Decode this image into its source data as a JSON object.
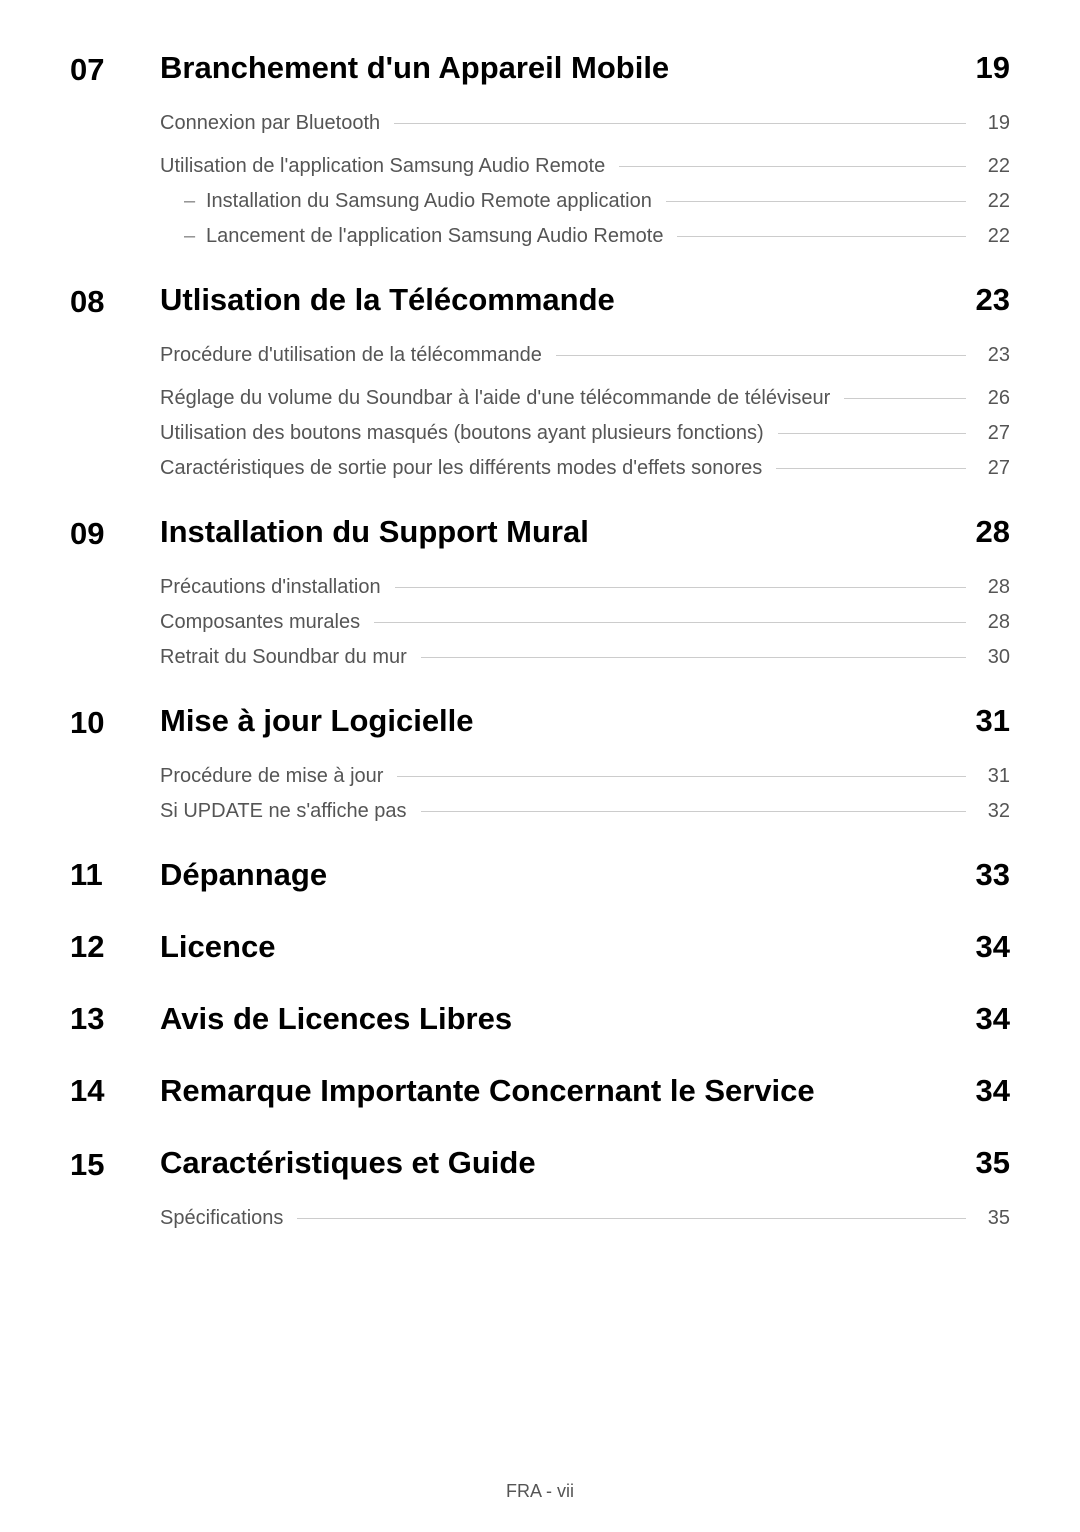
{
  "colors": {
    "text_primary": "#000000",
    "text_secondary": "#555555",
    "leader_line": "#cccccc",
    "background": "#ffffff"
  },
  "typography": {
    "section_num_size": 31,
    "section_title_size": 31,
    "toc_item_size": 20,
    "footer_size": 18
  },
  "sections": {
    "s07": {
      "num": "07",
      "title": "Branchement d'un Appareil Mobile",
      "page": "19",
      "items": [
        {
          "label": "Connexion par Bluetooth",
          "page": "19"
        },
        {
          "label": "Utilisation de l'application Samsung Audio Remote",
          "page": "22"
        },
        {
          "label": "Installation du Samsung Audio Remote application",
          "page": "22",
          "sub": true
        },
        {
          "label": "Lancement de l'application Samsung Audio Remote",
          "page": "22",
          "sub": true
        }
      ]
    },
    "s08": {
      "num": "08",
      "title": "Utlisation de la Télécommande",
      "page": "23",
      "items": [
        {
          "label": "Procédure d'utilisation de la télécommande",
          "page": "23"
        },
        {
          "label": "Réglage du volume du Soundbar à l'aide d'une télécommande de téléviseur",
          "page": "26"
        },
        {
          "label": "Utilisation des boutons masqués (boutons ayant plusieurs fonctions)",
          "page": "27"
        },
        {
          "label": "Caractéristiques de sortie pour les différents modes d'effets sonores",
          "page": "27"
        }
      ]
    },
    "s09": {
      "num": "09",
      "title": "Installation du Support Mural",
      "page": "28",
      "items": [
        {
          "label": "Précautions d'installation",
          "page": "28"
        },
        {
          "label": "Composantes murales",
          "page": "28"
        },
        {
          "label": "Retrait du Soundbar du mur",
          "page": "30"
        }
      ]
    },
    "s10": {
      "num": "10",
      "title": "Mise à jour Logicielle",
      "page": "31",
      "items": [
        {
          "label": "Procédure de mise à jour",
          "page": "31"
        },
        {
          "label": "Si UPDATE ne s'affiche pas",
          "page": "32"
        }
      ]
    },
    "s11": {
      "num": "11",
      "title": "Dépannage",
      "page": "33"
    },
    "s12": {
      "num": "12",
      "title": "Licence",
      "page": "34"
    },
    "s13": {
      "num": "13",
      "title": "Avis de Licences Libres",
      "page": "34"
    },
    "s14": {
      "num": "14",
      "title": "Remarque Importante Concernant le Service",
      "page": "34"
    },
    "s15": {
      "num": "15",
      "title": "Caractéristiques et Guide",
      "page": "35",
      "items": [
        {
          "label": "Spécifications",
          "page": "35"
        }
      ]
    }
  },
  "footer": "FRA - vii",
  "dash_glyph": "–"
}
